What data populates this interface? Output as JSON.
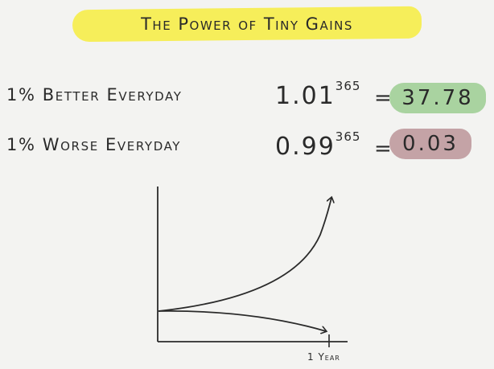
{
  "title": "The Power of Tiny Gains",
  "rows": [
    {
      "label": "1% Better Everyday",
      "base": "1.01",
      "exponent": "365",
      "equals": "=",
      "result": "37.78",
      "result_color": "#a9d3a0"
    },
    {
      "label": "1% Worse Everyday",
      "base": "0.99",
      "exponent": "365",
      "equals": "=",
      "result": "0.03",
      "result_color": "#c4a3a6"
    }
  ],
  "graph": {
    "x_tick_label": "1 Year"
  },
  "colors": {
    "title_highlight": "#f6ee5a",
    "ink": "#2a2a2a",
    "background": "#f3f3f1"
  }
}
